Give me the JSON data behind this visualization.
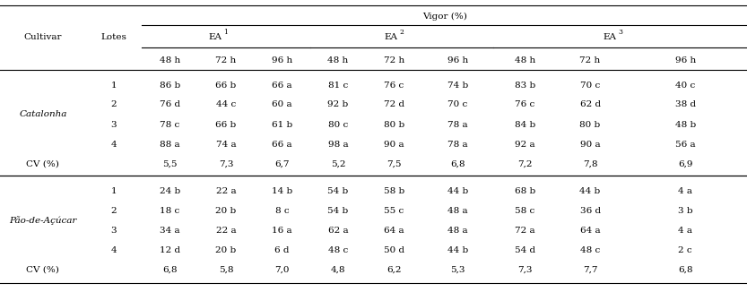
{
  "title": "Vigor (%)",
  "catalonha_rows": [
    [
      "1",
      "86 b",
      "66 b",
      "66 a",
      "81 c",
      "76 c",
      "74 b",
      "83 b",
      "70 c",
      "40 c"
    ],
    [
      "2",
      "76 d",
      "44 c",
      "60 a",
      "92 b",
      "72 d",
      "70 c",
      "76 c",
      "62 d",
      "38 d"
    ],
    [
      "3",
      "78 c",
      "66 b",
      "61 b",
      "80 c",
      "80 b",
      "78 a",
      "84 b",
      "80 b",
      "48 b"
    ],
    [
      "4",
      "88 a",
      "74 a",
      "66 a",
      "98 a",
      "90 a",
      "78 a",
      "92 a",
      "90 a",
      "56 a"
    ]
  ],
  "cv_catalonha": [
    "5,5",
    "7,3",
    "6,7",
    "5,2",
    "7,5",
    "6,8",
    "7,2",
    "7,8",
    "6,9"
  ],
  "pao_rows": [
    [
      "1",
      "24 b",
      "22 a",
      "14 b",
      "54 b",
      "58 b",
      "44 b",
      "68 b",
      "44 b",
      "4 a"
    ],
    [
      "2",
      "18 c",
      "20 b",
      "8 c",
      "54 b",
      "55 c",
      "48 a",
      "58 c",
      "36 d",
      "3 b"
    ],
    [
      "3",
      "34 a",
      "22 a",
      "16 a",
      "62 a",
      "64 a",
      "48 a",
      "72 a",
      "64 a",
      "4 a"
    ],
    [
      "4",
      "12 d",
      "20 b",
      "6 d",
      "48 c",
      "50 d",
      "44 b",
      "54 d",
      "48 c",
      "2 c"
    ]
  ],
  "cv_pao": [
    "6,8",
    "5,8",
    "7,0",
    "4,8",
    "6,2",
    "5,3",
    "7,3",
    "7,7",
    "6,8"
  ],
  "font_size": 7.5
}
